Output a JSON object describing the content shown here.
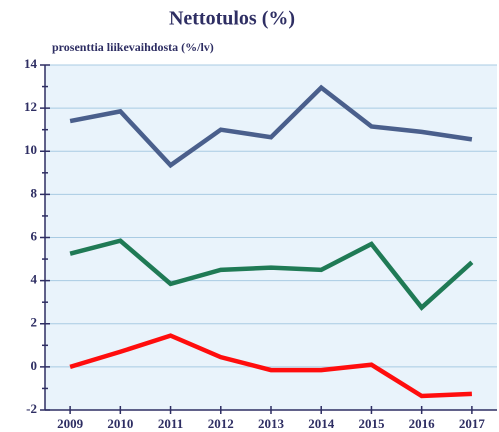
{
  "chart_data": {
    "type": "line",
    "title": "Nettotulos (%)",
    "subtitle": "prosenttia liikevaihdosta (%/lv)",
    "categories": [
      "2009",
      "2010",
      "2011",
      "2012",
      "2013",
      "2014",
      "2015",
      "2016",
      "2017"
    ],
    "series": [
      {
        "color": "#4a5f8c",
        "values": [
          11.4,
          11.85,
          9.35,
          11.0,
          10.65,
          12.95,
          11.15,
          10.9,
          10.55
        ]
      },
      {
        "color": "#1f7a55",
        "values": [
          5.25,
          5.85,
          3.85,
          4.5,
          4.6,
          4.5,
          5.7,
          2.75,
          4.85
        ]
      },
      {
        "color": "#ff0d0d",
        "values": [
          0.0,
          0.7,
          1.45,
          0.45,
          -0.15,
          -0.15,
          0.1,
          -1.35,
          -1.25
        ]
      }
    ],
    "ylim": [
      -2,
      14
    ],
    "yticks": [
      -2,
      0,
      2,
      4,
      6,
      8,
      10,
      12,
      14
    ],
    "minor_yticks": [
      -1,
      1,
      3,
      5,
      7,
      9,
      11,
      13
    ],
    "grid": true
  }
}
